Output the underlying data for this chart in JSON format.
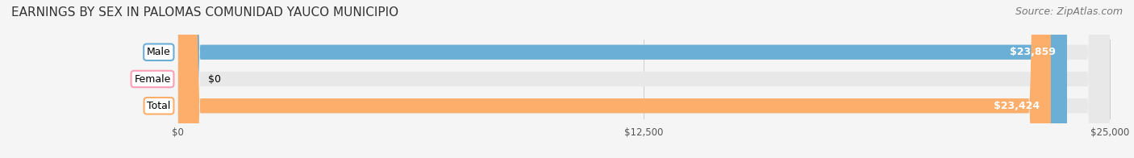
{
  "title": "EARNINGS BY SEX IN PALOMAS COMUNIDAD YAUCO MUNICIPIO",
  "source": "Source: ZipAtlas.com",
  "categories": [
    "Male",
    "Female",
    "Total"
  ],
  "values": [
    23859,
    0,
    23424
  ],
  "bar_colors": [
    "#6baed6",
    "#fa9fb5",
    "#fdae6b"
  ],
  "label_colors": [
    "#6baed6",
    "#fa9fb5",
    "#fdae6b"
  ],
  "value_labels": [
    "$23,859",
    "$0",
    "$23,424"
  ],
  "xlim": [
    0,
    25000
  ],
  "xticks": [
    0,
    12500,
    25000
  ],
  "xtick_labels": [
    "$0",
    "$12,500",
    "$25,000"
  ],
  "background_color": "#f5f5f5",
  "bar_background_color": "#e8e8e8",
  "title_fontsize": 11,
  "source_fontsize": 9,
  "bar_height": 0.55,
  "bar_label_fontsize": 9,
  "value_label_fontsize": 9
}
